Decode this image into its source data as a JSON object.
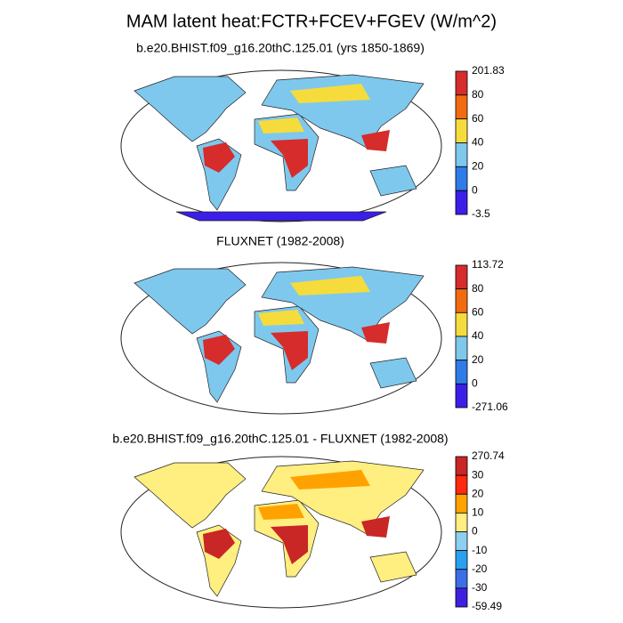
{
  "title": "MAM latent heat:FCTR+FCEV+FGEV (W/m^2)",
  "panels": [
    {
      "subtitle": "b.e20.BHIST.f09_g16.20thC.125.01 (yrs 1850-1869)",
      "colorbar": {
        "labels": [
          201.83,
          80,
          60,
          40,
          20,
          0,
          -3.5
        ],
        "colors": [
          "#d62c2c",
          "#f26b10",
          "#f5dc3c",
          "#7ec8ee",
          "#2f7ce8",
          "#3b1ee8"
        ]
      }
    },
    {
      "subtitle": "FLUXNET (1982-2008)",
      "colorbar": {
        "labels": [
          113.72,
          80,
          60,
          40,
          20,
          0,
          -271.06
        ],
        "colors": [
          "#d62c2c",
          "#f26b10",
          "#f5dc3c",
          "#7ec8ee",
          "#2f7ce8",
          "#3b1ee8"
        ]
      }
    },
    {
      "subtitle": "b.e20.BHIST.f09_g16.20thC.125.01 - FLUXNET (1982-2008)",
      "colorbar": {
        "labels": [
          270.74,
          30,
          20,
          10,
          0,
          -10,
          -20,
          -30,
          -59.49
        ],
        "colors": [
          "#c92626",
          "#ff2a10",
          "#ffa200",
          "#ffee80",
          "#8ccff0",
          "#2aa0f0",
          "#3c6ee6",
          "#4020e0"
        ]
      }
    }
  ]
}
